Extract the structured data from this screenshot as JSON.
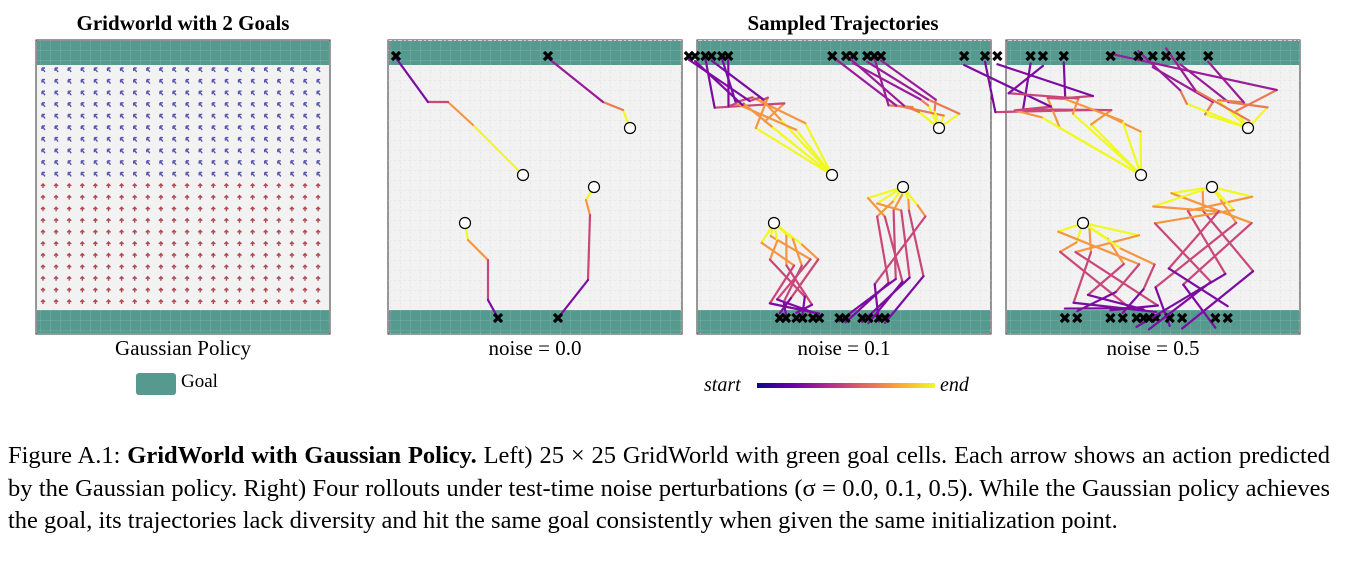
{
  "figure": {
    "left_title": "Gridworld with 2 Goals",
    "right_title": "Sampled Trajectories",
    "left_label": "Gaussian Policy",
    "panel_labels": [
      "noise = 0.0",
      "noise = 0.1",
      "noise = 0.5"
    ],
    "legend_goal": "Goal",
    "colorbar_start": "start",
    "colorbar_end": "end",
    "goal_color": "#55998f",
    "arrow_color_top": "#5a55b0",
    "arrow_color_bottom": "#b04a55"
  },
  "caption": {
    "prefix": "Figure A.1: ",
    "bold": "GridWorld with Gaussian Policy.",
    "text": " Left) 25 × 25 GridWorld with green goal cells. Each arrow shows an action predicted by the Gaussian policy.  Right) Four rollouts under test-time noise perturbations (σ = 0.0, 0.1, 0.5). While the Gaussian policy achieves the goal, its trajectories lack diversity and hit the same goal consistently when given the same initialization point."
  }
}
